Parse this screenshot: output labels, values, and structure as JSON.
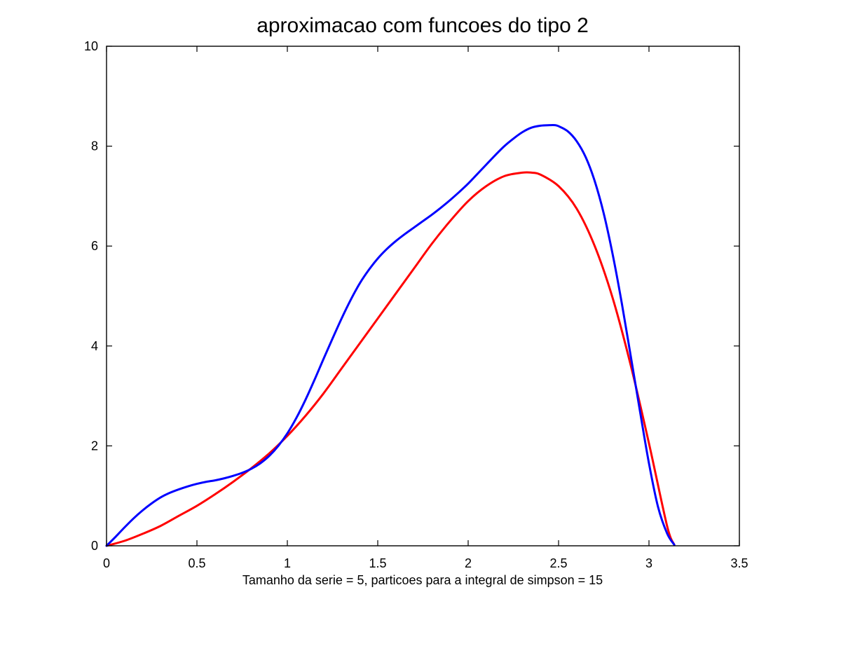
{
  "chart_data": {
    "type": "line",
    "title": "aproximacao com funcoes do tipo 2",
    "xlabel": "Tamanho da serie = 5, particoes para a integral de simpson = 15",
    "ylabel": "",
    "xlim": [
      0,
      3.5
    ],
    "ylim": [
      0,
      10
    ],
    "xticks": [
      0,
      0.5,
      1,
      1.5,
      2,
      2.5,
      3,
      3.5
    ],
    "xtick_labels": [
      "0",
      "0.5",
      "1",
      "1.5",
      "2",
      "2.5",
      "3",
      "3.5"
    ],
    "yticks": [
      0,
      2,
      4,
      6,
      8,
      10
    ],
    "ytick_labels": [
      "0",
      "2",
      "4",
      "6",
      "8",
      "10"
    ],
    "grid": false,
    "legend": "none",
    "series": [
      {
        "color": "#ff0000",
        "x": [
          0,
          0.1,
          0.2,
          0.3,
          0.4,
          0.5,
          0.6,
          0.7,
          0.8,
          0.9,
          1.0,
          1.1,
          1.2,
          1.3,
          1.4,
          1.5,
          1.6,
          1.7,
          1.8,
          1.9,
          2.0,
          2.1,
          2.2,
          2.3,
          2.35,
          2.4,
          2.5,
          2.6,
          2.7,
          2.8,
          2.9,
          3.0,
          3.1,
          3.14
        ],
        "y": [
          0,
          0.1,
          0.24,
          0.4,
          0.6,
          0.8,
          1.03,
          1.28,
          1.55,
          1.85,
          2.2,
          2.6,
          3.05,
          3.55,
          4.05,
          4.55,
          5.05,
          5.55,
          6.05,
          6.5,
          6.9,
          7.2,
          7.4,
          7.47,
          7.47,
          7.43,
          7.2,
          6.75,
          6.0,
          4.95,
          3.6,
          2.05,
          0.4,
          0.02
        ]
      },
      {
        "color": "#0000ff",
        "x": [
          0,
          0.05,
          0.1,
          0.15,
          0.2,
          0.25,
          0.3,
          0.35,
          0.4,
          0.45,
          0.5,
          0.55,
          0.6,
          0.65,
          0.7,
          0.75,
          0.8,
          0.85,
          0.9,
          0.95,
          1.0,
          1.05,
          1.1,
          1.15,
          1.2,
          1.25,
          1.3,
          1.35,
          1.4,
          1.45,
          1.5,
          1.55,
          1.6,
          1.65,
          1.7,
          1.75,
          1.8,
          1.85,
          1.9,
          1.95,
          2.0,
          2.05,
          2.1,
          2.15,
          2.2,
          2.25,
          2.3,
          2.35,
          2.4,
          2.45,
          2.48,
          2.5,
          2.55,
          2.6,
          2.65,
          2.7,
          2.75,
          2.8,
          2.85,
          2.9,
          2.95,
          3.0,
          3.05,
          3.1,
          3.14
        ],
        "y": [
          0,
          0.18,
          0.37,
          0.55,
          0.71,
          0.85,
          0.97,
          1.06,
          1.13,
          1.19,
          1.24,
          1.28,
          1.31,
          1.35,
          1.4,
          1.46,
          1.54,
          1.65,
          1.8,
          2.0,
          2.25,
          2.56,
          2.92,
          3.32,
          3.74,
          4.15,
          4.55,
          4.92,
          5.25,
          5.52,
          5.75,
          5.94,
          6.1,
          6.24,
          6.37,
          6.5,
          6.63,
          6.77,
          6.92,
          7.08,
          7.25,
          7.44,
          7.63,
          7.82,
          8.0,
          8.15,
          8.28,
          8.37,
          8.41,
          8.42,
          8.42,
          8.4,
          8.3,
          8.1,
          7.78,
          7.3,
          6.65,
          5.82,
          4.85,
          3.78,
          2.7,
          1.65,
          0.78,
          0.25,
          0.02
        ]
      }
    ]
  }
}
